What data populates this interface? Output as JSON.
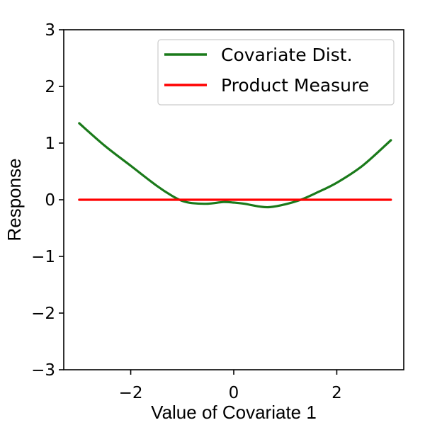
{
  "chart_data": {
    "type": "line",
    "title": "",
    "xlabel": "Value of Covariate 1",
    "ylabel": "Response",
    "xlim": [
      -3.3,
      3.3
    ],
    "ylim": [
      -3,
      3
    ],
    "xticks": [
      -2,
      0,
      2
    ],
    "xtick_labels": [
      "−2",
      "0",
      "2"
    ],
    "yticks": [
      -3,
      -2,
      -1,
      0,
      1,
      2,
      3
    ],
    "ytick_labels": [
      "−3",
      "−2",
      "−1",
      "0",
      "1",
      "2",
      "3"
    ],
    "grid": false,
    "legend_position": "top-right",
    "series": [
      {
        "name": "Covariate Dist.",
        "color": "#1a7a1a",
        "x": [
          -3.0,
          -2.5,
          -2.0,
          -1.5,
          -1.2,
          -1.0,
          -0.8,
          -0.5,
          -0.2,
          0.0,
          0.2,
          0.5,
          0.7,
          1.0,
          1.3,
          1.6,
          2.0,
          2.5,
          3.05
        ],
        "y": [
          1.35,
          0.95,
          0.6,
          0.25,
          0.07,
          -0.02,
          -0.06,
          -0.07,
          -0.04,
          -0.05,
          -0.07,
          -0.12,
          -0.13,
          -0.08,
          0.0,
          0.12,
          0.3,
          0.6,
          1.05
        ]
      },
      {
        "name": "Product Measure",
        "color": "#ff0000",
        "x": [
          -3.0,
          3.05
        ],
        "y": [
          0.0,
          0.0
        ]
      }
    ]
  }
}
